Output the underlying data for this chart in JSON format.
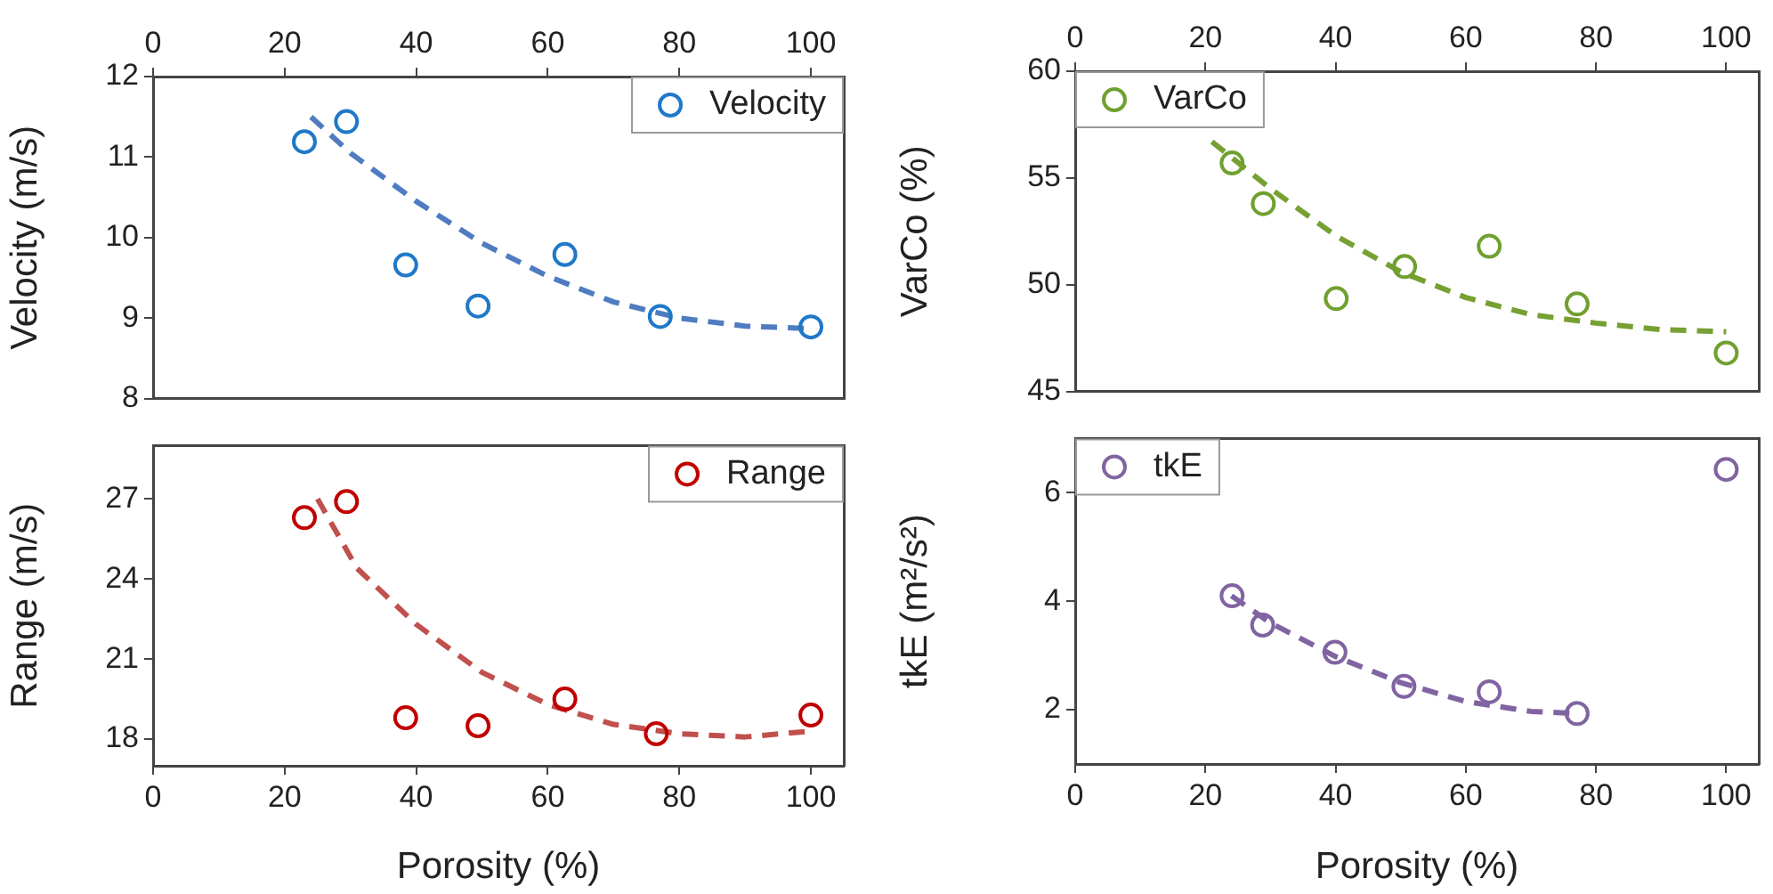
{
  "chart_data": [
    {
      "type": "scatter",
      "ylabel": "Velocity (m/s)",
      "xlim": [
        0,
        105
      ],
      "xticks": [
        0,
        20,
        40,
        60,
        80,
        100
      ],
      "ylim": [
        8,
        12
      ],
      "yticks": [
        8,
        9,
        10,
        11,
        12
      ],
      "legend": "top right",
      "series": [
        {
          "name": "Velocity",
          "color": "#1f78c8",
          "marker": "circle",
          "x": [
            23,
            29.4,
            38.4,
            49.4,
            62.6,
            77.1,
            100
          ],
          "values": [
            11.19,
            11.44,
            9.66,
            9.15,
            9.79,
            9.02,
            8.89
          ]
        },
        {
          "type": "line",
          "color": "#4f7cc0",
          "line_style": "dashed",
          "x": [
            24,
            30,
            40,
            50,
            60,
            70,
            80,
            90,
            100
          ],
          "values": [
            11.5,
            11.05,
            10.45,
            9.93,
            9.52,
            9.2,
            9.0,
            8.9,
            8.87
          ]
        }
      ]
    },
    {
      "type": "scatter",
      "ylabel": "Range (m/s)",
      "xlabel": "Porosity (%)",
      "xlim": [
        0,
        105
      ],
      "xticks": [
        0,
        20,
        40,
        60,
        80,
        100
      ],
      "ylim": [
        17,
        29
      ],
      "yticks": [
        18,
        21,
        24,
        27
      ],
      "legend": "top right",
      "series": [
        {
          "name": "Range",
          "color": "#c00000",
          "marker": "circle",
          "x": [
            23,
            29.4,
            38.4,
            49.4,
            62.6,
            76.5,
            100
          ],
          "values": [
            26.3,
            26.9,
            18.8,
            18.5,
            19.5,
            18.2,
            18.9
          ]
        },
        {
          "type": "line",
          "color": "#c0504d",
          "line_style": "dashed",
          "x": [
            25,
            31,
            40,
            50,
            60,
            70,
            80,
            90,
            100
          ],
          "values": [
            27,
            24.4,
            22.3,
            20.5,
            19.3,
            18.55,
            18.2,
            18.08,
            18.3
          ]
        }
      ]
    },
    {
      "type": "scatter",
      "ylabel": "VarCo (%)",
      "xlim": [
        0,
        105
      ],
      "xticks": [
        0,
        20,
        40,
        60,
        80,
        100
      ],
      "ylim": [
        45,
        60
      ],
      "yticks": [
        45,
        50,
        55,
        60
      ],
      "legend": "top left",
      "series": [
        {
          "name": "VarCo",
          "color": "#70a030",
          "marker": "circle",
          "x": [
            24.1,
            28.9,
            40.1,
            50.6,
            63.6,
            77.1,
            100
          ],
          "values": [
            55.7,
            53.8,
            49.35,
            50.85,
            51.8,
            49.1,
            46.8
          ]
        },
        {
          "type": "line",
          "color": "#77a033",
          "line_style": "dashed",
          "x": [
            21,
            30,
            40,
            50,
            60,
            70,
            80,
            90,
            100
          ],
          "values": [
            56.7,
            54.5,
            52.3,
            50.6,
            49.4,
            48.6,
            48.2,
            47.9,
            47.8
          ]
        }
      ]
    },
    {
      "type": "scatter",
      "ylabel": "tkE (m²/s²)",
      "xlabel": "Porosity (%)",
      "xlim": [
        0,
        105
      ],
      "xticks": [
        0,
        20,
        40,
        60,
        80,
        100
      ],
      "ylim": [
        1,
        7
      ],
      "yticks": [
        2,
        4,
        6
      ],
      "legend": "top left",
      "series": [
        {
          "name": "tkE",
          "color": "#8064a2",
          "marker": "circle",
          "x": [
            24.1,
            28.8,
            39.9,
            50.5,
            63.6,
            77.1,
            100
          ],
          "values": [
            4.1,
            3.56,
            3.06,
            2.43,
            2.33,
            1.93,
            6.43
          ]
        },
        {
          "type": "line",
          "color": "#8064a2",
          "line_style": "dashed",
          "x": [
            24,
            30,
            40,
            50,
            60,
            70,
            77
          ],
          "values": [
            4.1,
            3.6,
            2.98,
            2.5,
            2.15,
            1.97,
            1.93
          ]
        }
      ]
    }
  ]
}
